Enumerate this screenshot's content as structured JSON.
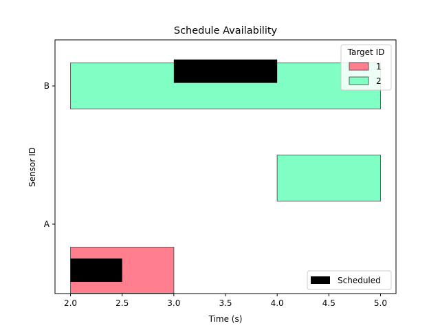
{
  "chart_data": {
    "type": "gantt",
    "title": "Schedule Availability",
    "xlabel": "Time (s)",
    "ylabel": "Sensor ID",
    "xlim": [
      1.85,
      5.15
    ],
    "xticks": [
      2.0,
      2.5,
      3.0,
      3.5,
      4.0,
      4.5,
      5.0
    ],
    "xtick_labels": [
      "2.0",
      "2.5",
      "3.0",
      "3.5",
      "4.0",
      "4.5",
      "5.0"
    ],
    "sensors": [
      "A",
      "B"
    ],
    "colors": {
      "1": "#ff7f8f",
      "2": "#7fffc4",
      "scheduled": "#000000"
    },
    "availability": [
      {
        "sensor": "A",
        "target": "1",
        "start": 2.0,
        "end": 3.0,
        "offset": -0.25
      },
      {
        "sensor": "A",
        "target": "2",
        "start": 4.0,
        "end": 5.0,
        "offset": 0.25
      },
      {
        "sensor": "B",
        "target": "2",
        "start": 2.0,
        "end": 5.0,
        "offset": 0.0
      }
    ],
    "scheduled": [
      {
        "sensor": "A",
        "start": 2.0,
        "end": 2.5,
        "offset": -0.25
      },
      {
        "sensor": "B",
        "start": 3.0,
        "end": 4.0,
        "offset": 0.08
      }
    ],
    "legend_target": {
      "title": "Target ID",
      "placement": "upper-right",
      "entries": [
        {
          "label": "1",
          "color": "#ff7f8f"
        },
        {
          "label": "2",
          "color": "#7fffc4"
        }
      ]
    },
    "legend_scheduled": {
      "placement": "lower-right",
      "entries": [
        {
          "label": "Scheduled",
          "color": "#000000"
        }
      ]
    }
  }
}
